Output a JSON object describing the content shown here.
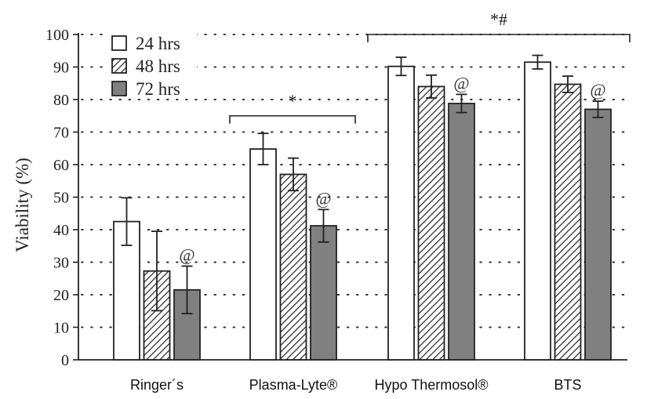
{
  "chart_data": {
    "type": "bar",
    "ylabel": "Viability (%)",
    "ylim": [
      0,
      100
    ],
    "yticks": [
      0,
      10,
      20,
      30,
      40,
      50,
      60,
      70,
      80,
      90,
      100
    ],
    "grid": "dotted horizontal",
    "legend_position": "top-left",
    "categories": [
      "Ringer´s",
      "Plasma-Lyte®",
      "Hypo Thermosol®",
      "BTS"
    ],
    "series": [
      {
        "name": "24 hrs",
        "pattern": "white",
        "values": [
          42.5,
          64.8,
          90.2,
          91.5
        ],
        "errors": [
          7.3,
          4.8,
          2.8,
          2.1
        ]
      },
      {
        "name": "48 hrs",
        "pattern": "hatched",
        "values": [
          27.3,
          57.0,
          84.0,
          84.7
        ],
        "errors": [
          12.2,
          5.0,
          3.5,
          2.5
        ]
      },
      {
        "name": "72 hrs",
        "pattern": "gray",
        "fill": "#808080",
        "values": [
          21.5,
          41.2,
          78.8,
          77.0
        ],
        "errors": [
          7.3,
          5.0,
          2.8,
          2.5
        ]
      }
    ],
    "bar_annotations": [
      {
        "category": "Ringer´s",
        "series": "72 hrs",
        "text": "@"
      },
      {
        "category": "Plasma-Lyte®",
        "series": "72 hrs",
        "text": "@"
      },
      {
        "category": "Hypo Thermosol®",
        "series": "72 hrs",
        "text": "@"
      },
      {
        "category": "BTS",
        "series": "72 hrs",
        "text": "@"
      }
    ],
    "brackets": [
      {
        "from": "Plasma-Lyte®",
        "to": "Plasma-Lyte®",
        "level": 75,
        "text": "*"
      },
      {
        "from": "Hypo Thermosol®",
        "to": "BTS",
        "level": 100,
        "text": "*#"
      }
    ]
  }
}
